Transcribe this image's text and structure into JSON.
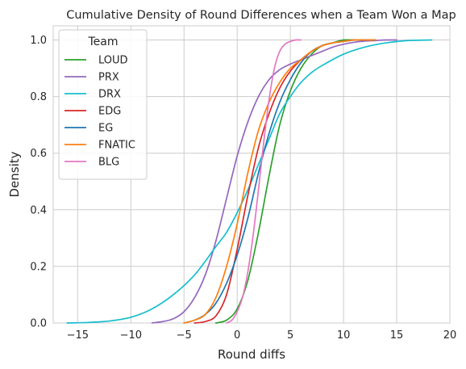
{
  "chart_data": {
    "type": "line",
    "title": "Cumulative Density of Round Differences when a Team Won a Map",
    "xlabel": "Round diffs",
    "ylabel": "Density",
    "xlim": [
      -17.3,
      20
    ],
    "ylim": [
      0,
      1.05
    ],
    "xticks": [
      -15,
      -10,
      -5,
      0,
      5,
      10,
      15,
      20
    ],
    "yticks": [
      0.0,
      0.2,
      0.4,
      0.6,
      0.8,
      1.0
    ],
    "xtick_labels": [
      "−15",
      "−10",
      "−5",
      "0",
      "5",
      "10",
      "15",
      "20"
    ],
    "ytick_labels": [
      "0.0",
      "0.2",
      "0.4",
      "0.6",
      "0.8",
      "1.0"
    ],
    "grid": true,
    "legend": {
      "title": "Team",
      "position": "top-left"
    },
    "series": [
      {
        "name": "LOUD",
        "color": "#2ca02c",
        "x": [
          -2,
          -1,
          0,
          1,
          2,
          3,
          4,
          5,
          6,
          7,
          8,
          9,
          10,
          11,
          12,
          13
        ],
        "y": [
          0.0,
          0.01,
          0.05,
          0.15,
          0.32,
          0.52,
          0.7,
          0.82,
          0.9,
          0.95,
          0.98,
          0.99,
          1.0,
          1.0,
          1.0,
          1.0
        ]
      },
      {
        "name": "PRX",
        "color": "#9467bd",
        "x": [
          -8,
          -7,
          -6,
          -5,
          -4,
          -3,
          -2,
          -1,
          0,
          1,
          2,
          3,
          4,
          5,
          6,
          7,
          8,
          9,
          10,
          11,
          12,
          13,
          14,
          15
        ],
        "y": [
          0.0,
          0.005,
          0.015,
          0.04,
          0.09,
          0.17,
          0.29,
          0.44,
          0.59,
          0.71,
          0.8,
          0.86,
          0.895,
          0.915,
          0.93,
          0.945,
          0.96,
          0.975,
          0.985,
          0.992,
          0.996,
          0.998,
          1.0,
          1.0
        ]
      },
      {
        "name": "DRX",
        "color": "#17becf",
        "x": [
          -16,
          -14,
          -12,
          -10,
          -8,
          -6,
          -4,
          -2,
          -1,
          0,
          1,
          2,
          3,
          4,
          5,
          6,
          7,
          8,
          10,
          12,
          14,
          16,
          18.3
        ],
        "y": [
          0.0,
          0.002,
          0.007,
          0.02,
          0.05,
          0.1,
          0.17,
          0.27,
          0.32,
          0.39,
          0.47,
          0.56,
          0.65,
          0.74,
          0.8,
          0.85,
          0.885,
          0.91,
          0.95,
          0.975,
          0.99,
          0.998,
          1.0
        ]
      },
      {
        "name": "EDG",
        "color": "#d62728",
        "x": [
          -4,
          -3,
          -2,
          -1,
          0,
          1,
          2,
          3,
          4,
          5,
          6,
          7,
          8,
          9,
          10,
          11,
          12,
          13
        ],
        "y": [
          0.0,
          0.005,
          0.025,
          0.1,
          0.26,
          0.45,
          0.62,
          0.74,
          0.83,
          0.89,
          0.93,
          0.96,
          0.98,
          0.99,
          0.995,
          1.0,
          1.0,
          1.0
        ]
      },
      {
        "name": "EG",
        "color": "#1f77b4",
        "x": [
          -5,
          -4,
          -3,
          -2,
          -1,
          0,
          1,
          2,
          3,
          4,
          5,
          6,
          7,
          8,
          9,
          10,
          11,
          12,
          13
        ],
        "y": [
          0.0,
          0.01,
          0.03,
          0.07,
          0.14,
          0.24,
          0.37,
          0.53,
          0.67,
          0.78,
          0.86,
          0.92,
          0.96,
          0.98,
          0.99,
          0.995,
          1.0,
          1.0,
          1.0
        ]
      },
      {
        "name": "FNATIC",
        "color": "#ff7f0e",
        "x": [
          -5,
          -4,
          -3,
          -2,
          -1,
          0,
          1,
          2,
          3,
          4,
          5,
          6,
          7,
          8,
          9,
          10,
          11,
          12,
          13
        ],
        "y": [
          0.0,
          0.01,
          0.03,
          0.09,
          0.2,
          0.35,
          0.53,
          0.68,
          0.78,
          0.85,
          0.9,
          0.93,
          0.96,
          0.98,
          0.99,
          0.995,
          1.0,
          1.0,
          1.0
        ]
      },
      {
        "name": "BLG",
        "color": "#e377c2",
        "x": [
          -1,
          -0.5,
          0,
          0.5,
          1,
          1.5,
          2,
          2.5,
          3,
          3.5,
          4,
          4.5,
          5,
          5.5,
          6
        ],
        "y": [
          0.0,
          0.01,
          0.04,
          0.09,
          0.18,
          0.31,
          0.47,
          0.64,
          0.79,
          0.9,
          0.96,
          0.985,
          0.995,
          1.0,
          1.0
        ]
      }
    ]
  }
}
